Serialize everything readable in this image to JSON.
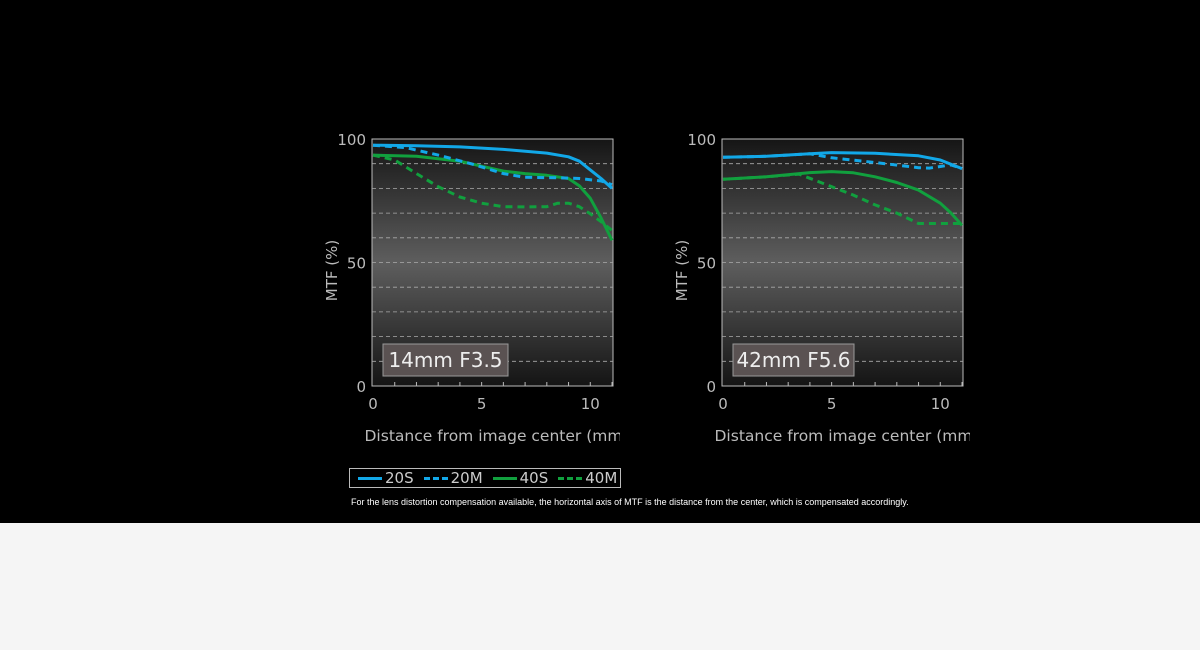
{
  "colors": {
    "S20": "#12a8e8",
    "S40": "#11a03e",
    "background": "#000000"
  },
  "legend": [
    {
      "label": "20S",
      "color": "#12a8e8",
      "style": "solid"
    },
    {
      "label": "20M",
      "color": "#12a8e8",
      "style": "dashed"
    },
    {
      "label": "40S",
      "color": "#11a03e",
      "style": "solid"
    },
    {
      "label": "40M",
      "color": "#11a03e",
      "style": "dashed"
    }
  ],
  "footnote": "For the lens distortion compensation available, the horizontal axis of MTF is the distance from the center, which is compensated accordingly.",
  "chart_data": [
    {
      "type": "line",
      "title": "14mm F3.5",
      "xlabel": "Distance from image center (mm)",
      "ylabel": "MTF (%)",
      "xlim": [
        0,
        11
      ],
      "ylim": [
        0,
        100
      ],
      "xticks": [
        "0",
        "5",
        "10"
      ],
      "yticks": [
        "0",
        "50",
        "100"
      ],
      "grid": true,
      "series": [
        {
          "name": "20S",
          "points": [
            [
              0,
              97.5
            ],
            [
              2,
              97.3
            ],
            [
              4,
              96.8
            ],
            [
              6,
              95.8
            ],
            [
              8,
              94.3
            ],
            [
              9,
              92.8
            ],
            [
              9.5,
              91
            ],
            [
              10,
              87.5
            ],
            [
              10.5,
              84
            ],
            [
              11,
              80
            ]
          ]
        },
        {
          "name": "20M",
          "points": [
            [
              0,
              97.5
            ],
            [
              1.5,
              96.5
            ],
            [
              3,
              93.5
            ],
            [
              4.5,
              90
            ],
            [
              6,
              86
            ],
            [
              7,
              84.5
            ],
            [
              8.5,
              84.3
            ],
            [
              9.5,
              84
            ],
            [
              10.5,
              83
            ],
            [
              11,
              81.5
            ]
          ]
        },
        {
          "name": "40S",
          "points": [
            [
              0,
              93.5
            ],
            [
              2,
              93
            ],
            [
              4,
              91
            ],
            [
              5,
              89
            ],
            [
              6,
              87
            ],
            [
              7,
              86
            ],
            [
              8,
              85.3
            ],
            [
              9,
              84
            ],
            [
              9.5,
              81
            ],
            [
              10,
              76
            ],
            [
              10.5,
              68
            ],
            [
              11,
              59
            ]
          ]
        },
        {
          "name": "40M",
          "points": [
            [
              0,
              93.5
            ],
            [
              1,
              91.5
            ],
            [
              2,
              86
            ],
            [
              3,
              80.7
            ],
            [
              4,
              76.5
            ],
            [
              5,
              74
            ],
            [
              6,
              72.6
            ],
            [
              7,
              72.5
            ],
            [
              8,
              72.6
            ],
            [
              8.5,
              74
            ],
            [
              9,
              74
            ],
            [
              9.5,
              72.6
            ],
            [
              10,
              69.7
            ],
            [
              10.5,
              66.5
            ],
            [
              11,
              63
            ]
          ]
        }
      ]
    },
    {
      "type": "line",
      "title": "42mm F5.6",
      "xlabel": "Distance from image center (mm)",
      "ylabel": "MTF (%)",
      "xlim": [
        0,
        11
      ],
      "ylim": [
        0,
        100
      ],
      "xticks": [
        "0",
        "5",
        "10"
      ],
      "yticks": [
        "0",
        "50",
        "100"
      ],
      "grid": true,
      "series": [
        {
          "name": "20S",
          "points": [
            [
              0,
              92.6
            ],
            [
              2,
              93
            ],
            [
              4,
              94
            ],
            [
              5,
              94.5
            ],
            [
              7,
              94.2
            ],
            [
              9,
              93.2
            ],
            [
              10,
              91.5
            ],
            [
              11,
              88
            ]
          ]
        },
        {
          "name": "20M",
          "points": [
            [
              0,
              92.6
            ],
            [
              2,
              93
            ],
            [
              4,
              94
            ],
            [
              5,
              92.4
            ],
            [
              7,
              90.5
            ],
            [
              9,
              88.4
            ],
            [
              9.5,
              88.2
            ],
            [
              10.5,
              89.5
            ],
            [
              11,
              88
            ]
          ]
        },
        {
          "name": "40S",
          "points": [
            [
              0,
              83.7
            ],
            [
              2,
              84.7
            ],
            [
              4,
              86.4
            ],
            [
              5,
              86.8
            ],
            [
              6,
              86.3
            ],
            [
              7,
              84.7
            ],
            [
              8,
              82.4
            ],
            [
              9,
              79.3
            ],
            [
              10,
              74
            ],
            [
              10.5,
              70
            ],
            [
              11,
              65
            ]
          ]
        },
        {
          "name": "40M",
          "points": [
            [
              0,
              83.7
            ],
            [
              2,
              84.7
            ],
            [
              3.5,
              85.8
            ],
            [
              5,
              80.7
            ],
            [
              6,
              77.3
            ],
            [
              7,
              73.3
            ],
            [
              8,
              70
            ],
            [
              9,
              65.8
            ],
            [
              10,
              65.8
            ],
            [
              11,
              65.8
            ]
          ]
        }
      ]
    }
  ]
}
